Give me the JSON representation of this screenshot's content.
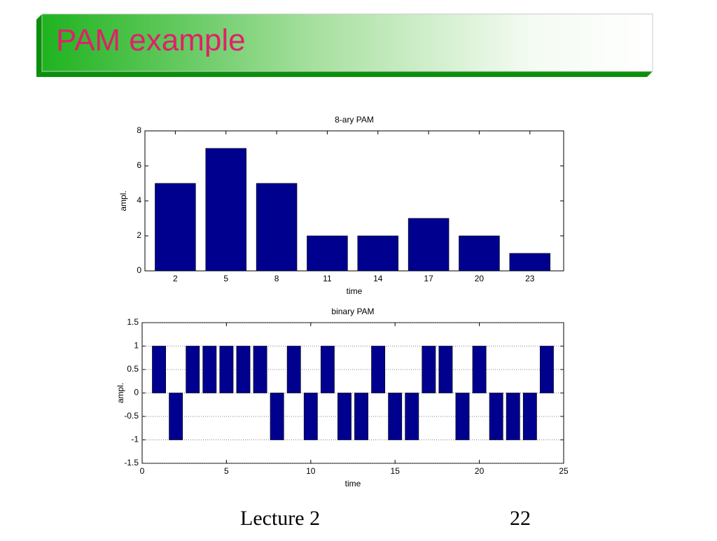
{
  "slide": {
    "title": "PAM example",
    "footer": "Lecture 2",
    "page_number": "22"
  },
  "chart_data": [
    {
      "type": "bar",
      "title": "8-ary PAM",
      "x_label": "time",
      "y_label": "ampl.",
      "x": [
        2,
        5,
        8,
        11,
        14,
        17,
        20,
        23
      ],
      "values": [
        5,
        7,
        5,
        2,
        2,
        3,
        2,
        1
      ],
      "color": "#00008f",
      "bar_width": 2.4,
      "xlim": [
        0.2,
        25
      ],
      "xticks": [
        2,
        5,
        8,
        11,
        14,
        17,
        20,
        23
      ],
      "ylim": [
        0,
        8
      ],
      "yticks": [
        0,
        2,
        4,
        6,
        8
      ],
      "grid": false
    },
    {
      "type": "bar",
      "title": "binary PAM",
      "x_label": "time",
      "y_label": "ampl.",
      "x": [
        1,
        2,
        3,
        4,
        5,
        6,
        7,
        8,
        9,
        10,
        11,
        12,
        13,
        14,
        15,
        16,
        17,
        18,
        19,
        20,
        21,
        22,
        23,
        24
      ],
      "values": [
        1,
        -1,
        1,
        1,
        1,
        1,
        1,
        -1,
        1,
        -1,
        1,
        -1,
        -1,
        1,
        -1,
        -1,
        1,
        1,
        -1,
        1,
        -1,
        -1,
        -1,
        1
      ],
      "color": "#00008f",
      "bar_width": 0.8,
      "xlim": [
        0,
        25
      ],
      "xticks": [
        0,
        5,
        10,
        15,
        20,
        25
      ],
      "ylim": [
        -1.5,
        1.5
      ],
      "yticks": [
        -1.5,
        -1,
        -0.5,
        0,
        0.5,
        1,
        1.5
      ],
      "grid": true
    }
  ]
}
